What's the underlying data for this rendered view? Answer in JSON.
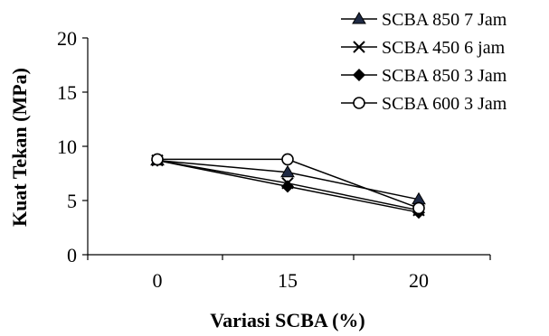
{
  "chart_data": {
    "type": "line",
    "categories": [
      "0",
      "15",
      "20"
    ],
    "xlabel": "Variasi SCBA (%)",
    "ylabel": "Kuat Tekan (MPa)",
    "ylim": [
      0,
      20
    ],
    "yticks": [
      0,
      5,
      10,
      15,
      20
    ],
    "legend_position": "top-right",
    "series": [
      {
        "name": "SCBA 850 7 Jam",
        "marker": "triangle",
        "color": "#1f2a44",
        "values": [
          8.7,
          7.6,
          5.1
        ]
      },
      {
        "name": "SCBA 450 6 jam",
        "marker": "x",
        "color": "#000000",
        "values": [
          8.7,
          6.6,
          4.1
        ]
      },
      {
        "name": "SCBA 850 3 Jam",
        "marker": "diamond",
        "color": "#000000",
        "values": [
          8.7,
          6.3,
          3.9
        ]
      },
      {
        "name": "SCBA 600 3 Jam",
        "marker": "circle-open",
        "color": "#000000",
        "values": [
          8.8,
          8.8,
          4.3
        ]
      }
    ]
  }
}
